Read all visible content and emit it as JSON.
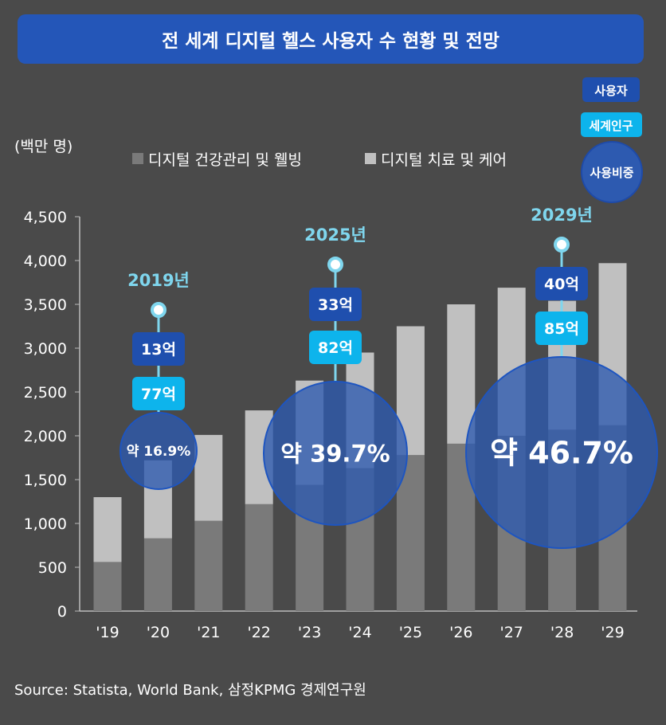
{
  "title": "전 세계 디지털 헬스 사용자 수 현황 및 전망",
  "unit_label": "(백만 명)",
  "source": "Source: Statista, World Bank, 삼정KPMG 경제연구원",
  "key": {
    "users": "사용자",
    "population": "세계인구",
    "share": "사용비중"
  },
  "colors": {
    "background": "#4a4a4a",
    "banner": "#2456b8",
    "users_box": "#1f4fae",
    "population_box": "#0db4ec",
    "circle": "#2d5ab0",
    "wellness": "#7a7a7a",
    "therapy": "#c0c0c0",
    "pin": "#7fd6ee"
  },
  "callouts": [
    {
      "year_label": "2019년",
      "users": "13억",
      "population": "77억",
      "share": "약 16.9%"
    },
    {
      "year_label": "2025년",
      "users": "33억",
      "population": "82억",
      "share": "약 39.7%"
    },
    {
      "year_label": "2029년",
      "users": "40억",
      "population": "85억",
      "share": "약 46.7%"
    }
  ],
  "chart_data": {
    "type": "bar",
    "stacked": true,
    "categories": [
      "'19",
      "'20",
      "'21",
      "'22",
      "'23",
      "'24",
      "'25",
      "'26",
      "'27",
      "'28",
      "'29"
    ],
    "series": [
      {
        "name": "디지털 건강관리 및 웰빙",
        "values": [
          560,
          830,
          1030,
          1220,
          1440,
          1630,
          1780,
          1910,
          2000,
          2070,
          2120
        ]
      },
      {
        "name": "디지털 치료 및 케어",
        "values": [
          740,
          890,
          980,
          1070,
          1190,
          1320,
          1470,
          1590,
          1690,
          1470,
          1850
        ]
      }
    ],
    "ylim": [
      0,
      4500
    ],
    "yticks": [
      "0",
      "500",
      "1,000",
      "1,500",
      "2,000",
      "2,500",
      "3,000",
      "3,500",
      "4,000",
      "4,500"
    ],
    "ytick_values": [
      0,
      500,
      1000,
      1500,
      2000,
      2500,
      3000,
      3500,
      4000,
      4500
    ],
    "ylabel": "(백만 명)",
    "legend": "top"
  }
}
